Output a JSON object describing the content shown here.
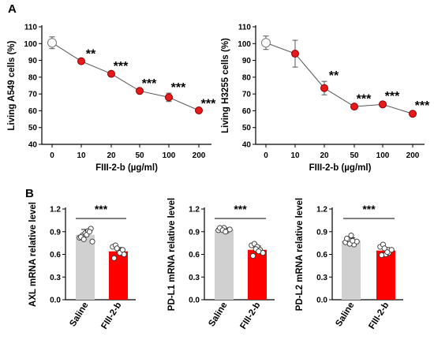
{
  "panels": {
    "a_label": "A",
    "b_label": "B"
  },
  "sig_levels": [
    "**",
    "***"
  ],
  "chart_data": [
    {
      "type": "line",
      "panel": "A",
      "categories": [
        "0",
        "10",
        "20",
        "50",
        "100",
        "200"
      ],
      "series": [
        {
          "values": [
            100.5,
            89.5,
            82,
            71.8,
            68,
            60.2
          ],
          "errors": [
            3.5,
            1.0,
            1.2,
            1.0,
            2.5,
            0.8
          ],
          "markers": [
            "open",
            "filled",
            "filled",
            "filled",
            "filled",
            "filled"
          ]
        }
      ],
      "significance": [
        "",
        "**",
        "***",
        "***",
        "***",
        "***"
      ],
      "xlabel": "FIII-2-b (µg/ml)",
      "ylabel": "Living  A549 cells (%)",
      "ylim": [
        40,
        110
      ],
      "yticks": [
        40,
        50,
        60,
        70,
        80,
        90,
        100,
        110
      ],
      "colors": {
        "filled": "#e8191c",
        "open": "#ffffff",
        "line": "#555555"
      }
    },
    {
      "type": "line",
      "panel": "A",
      "categories": [
        "0",
        "10",
        "20",
        "50",
        "100",
        "200"
      ],
      "series": [
        {
          "values": [
            100.5,
            94,
            73.5,
            62.5,
            63.8,
            58.2
          ],
          "errors": [
            4.0,
            8.0,
            4.0,
            1.2,
            1.5,
            1.5
          ],
          "markers": [
            "open",
            "filled",
            "filled",
            "filled",
            "filled",
            "filled"
          ]
        }
      ],
      "significance": [
        "",
        "",
        "**",
        "***",
        "***",
        "***"
      ],
      "xlabel": "FIII-2-b (µg/ml)",
      "ylabel": "Living H3255 cells (%)",
      "ylim": [
        40,
        110
      ],
      "yticks": [
        40,
        50,
        60,
        70,
        80,
        90,
        100,
        110
      ],
      "colors": {
        "filled": "#e8191c",
        "open": "#ffffff",
        "line": "#555555"
      }
    },
    {
      "type": "bar",
      "panel": "B",
      "categories": [
        "Saline",
        "FIII-2-b"
      ],
      "values": [
        0.86,
        0.64
      ],
      "errors": [
        0.07,
        0.05
      ],
      "points": [
        [
          0.82,
          0.85,
          0.88,
          0.91,
          0.94,
          0.83,
          0.8,
          0.86,
          0.9,
          0.77
        ],
        [
          0.7,
          0.72,
          0.66,
          0.64,
          0.6,
          0.55,
          0.68,
          0.62,
          0.66
        ]
      ],
      "significance": "***",
      "ylabel": "AXL mRNA relative level",
      "ylim": [
        0,
        1.2
      ],
      "yticks": [
        "0.0",
        "0.3",
        "0.6",
        "0.9",
        "1.2"
      ],
      "colors": [
        "#d0d0d0",
        "#ff0000"
      ]
    },
    {
      "type": "bar",
      "panel": "B",
      "categories": [
        "Saline",
        "FIII-2-b"
      ],
      "values": [
        0.93,
        0.66
      ],
      "errors": [
        0.02,
        0.05
      ],
      "points": [
        [
          0.92,
          0.94,
          0.95,
          0.91,
          0.93,
          0.95,
          0.92,
          0.9
        ],
        [
          0.72,
          0.74,
          0.7,
          0.66,
          0.62,
          0.58,
          0.67,
          0.64
        ]
      ],
      "significance": "***",
      "ylabel": "PD-L1 mRNA relative level",
      "ylim": [
        0,
        1.2
      ],
      "yticks": [
        "0.0",
        "0.3",
        "0.6",
        "0.9",
        "1.2"
      ],
      "colors": [
        "#d0d0d0",
        "#ff0000"
      ]
    },
    {
      "type": "bar",
      "panel": "B",
      "categories": [
        "Saline",
        "FIII-2-b"
      ],
      "values": [
        0.78,
        0.65
      ],
      "errors": [
        0.04,
        0.04
      ],
      "points": [
        [
          0.76,
          0.8,
          0.85,
          0.73,
          0.77,
          0.81,
          0.74,
          0.78
        ],
        [
          0.7,
          0.73,
          0.6,
          0.62,
          0.66,
          0.59,
          0.68,
          0.63
        ]
      ],
      "significance": "***",
      "ylabel": "PD-L2 mRNA relative level",
      "ylim": [
        0,
        1.2
      ],
      "yticks": [
        "0.0",
        "0.3",
        "0.6",
        "0.9",
        "1.2"
      ],
      "colors": [
        "#d0d0d0",
        "#ff0000"
      ]
    }
  ]
}
